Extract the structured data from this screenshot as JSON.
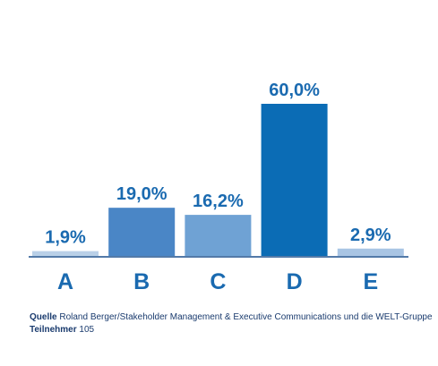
{
  "chart_data": {
    "type": "bar",
    "categories": [
      "A",
      "B",
      "C",
      "D",
      "E"
    ],
    "values": [
      1.9,
      19.0,
      16.2,
      60.0,
      2.9
    ],
    "value_labels": [
      "1,9%",
      "19,0%",
      "16,2%",
      "60,0%",
      "2,9%"
    ],
    "colors": [
      "#b9d0e8",
      "#4a86c6",
      "#6fa2d4",
      "#0b6cb5",
      "#a9c5e4"
    ],
    "source_label": "Quelle",
    "source": "Roland Berger/Stakeholder Management & Executive Communications  und die WELT-Gruppe",
    "participants_label": "Teilnehmer",
    "participants": "105"
  }
}
